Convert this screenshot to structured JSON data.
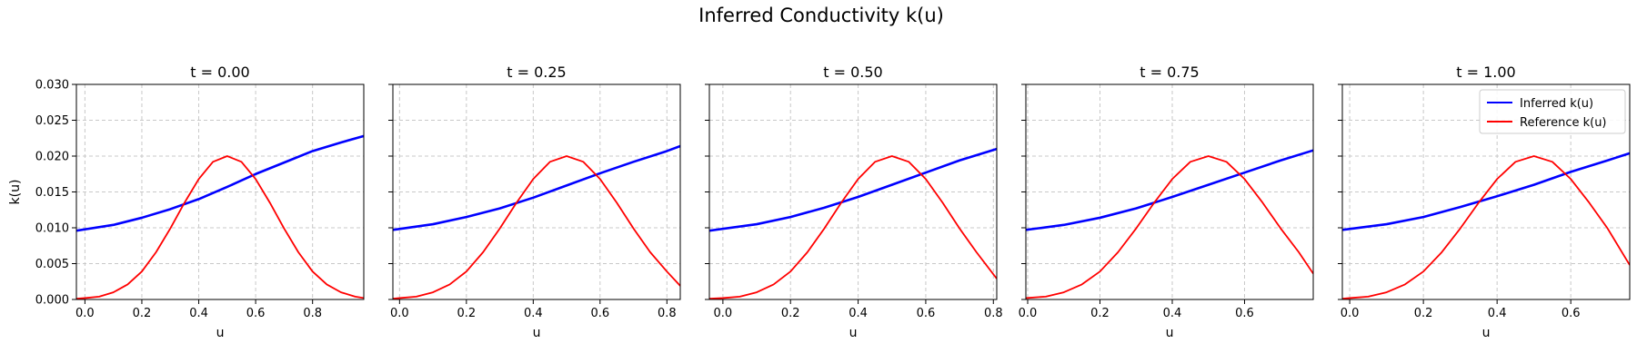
{
  "figure": {
    "title": "Inferred Conductivity k(u)"
  },
  "chart_data": [
    {
      "type": "line",
      "title": "t = 0.00",
      "xlabel": "u",
      "ylabel": "k(u)",
      "xlim": [
        -0.03,
        0.98
      ],
      "ylim": [
        0,
        0.03
      ],
      "xticks": [
        "0.0",
        "0.2",
        "0.4",
        "0.6",
        "0.8"
      ],
      "yticks": [
        "0.000",
        "0.005",
        "0.010",
        "0.015",
        "0.020",
        "0.025",
        "0.030"
      ],
      "grid": true,
      "legend": null,
      "series": [
        {
          "name": "Inferred k(u)",
          "color": "#0000ff",
          "x": [
            -0.03,
            0.1,
            0.2,
            0.3,
            0.4,
            0.5,
            0.6,
            0.7,
            0.8,
            0.9,
            0.98
          ],
          "y": [
            0.0096,
            0.0104,
            0.0114,
            0.0126,
            0.014,
            0.0157,
            0.0175,
            0.0191,
            0.0207,
            0.0219,
            0.0228
          ]
        },
        {
          "name": "Reference k(u)",
          "color": "#ff0000",
          "x": [
            -0.03,
            0.0,
            0.05,
            0.1,
            0.15,
            0.2,
            0.25,
            0.3,
            0.35,
            0.4,
            0.45,
            0.5,
            0.55,
            0.6,
            0.65,
            0.7,
            0.75,
            0.8,
            0.85,
            0.9,
            0.95,
            0.98
          ],
          "y": [
            0.0001,
            0.0002,
            0.0004,
            0.001,
            0.0021,
            0.0039,
            0.0066,
            0.0099,
            0.0135,
            0.0168,
            0.0192,
            0.02,
            0.0192,
            0.0168,
            0.0135,
            0.0099,
            0.0066,
            0.0039,
            0.0021,
            0.001,
            0.0004,
            0.0002
          ]
        }
      ]
    },
    {
      "type": "line",
      "title": "t = 0.25",
      "xlabel": "u",
      "ylabel": "",
      "xlim": [
        -0.02,
        0.84
      ],
      "ylim": [
        0,
        0.03
      ],
      "xticks": [
        "0.0",
        "0.2",
        "0.4",
        "0.6",
        "0.8"
      ],
      "yticks": [],
      "grid": true,
      "legend": null,
      "series": [
        {
          "name": "Inferred k(u)",
          "color": "#0000ff",
          "x": [
            -0.02,
            0.1,
            0.2,
            0.3,
            0.4,
            0.5,
            0.6,
            0.7,
            0.8,
            0.84
          ],
          "y": [
            0.0097,
            0.0105,
            0.0115,
            0.0127,
            0.0142,
            0.0159,
            0.0176,
            0.0192,
            0.0207,
            0.0214
          ]
        },
        {
          "name": "Reference k(u)",
          "color": "#ff0000",
          "x": [
            -0.02,
            0.0,
            0.05,
            0.1,
            0.15,
            0.2,
            0.25,
            0.3,
            0.35,
            0.4,
            0.45,
            0.5,
            0.55,
            0.6,
            0.65,
            0.7,
            0.75,
            0.8,
            0.84
          ],
          "y": [
            0.0001,
            0.0002,
            0.0004,
            0.001,
            0.0021,
            0.0039,
            0.0066,
            0.0099,
            0.0135,
            0.0168,
            0.0192,
            0.02,
            0.0192,
            0.0168,
            0.0135,
            0.0099,
            0.0066,
            0.0039,
            0.0019
          ]
        }
      ]
    },
    {
      "type": "line",
      "title": "t = 0.50",
      "xlabel": "u",
      "ylabel": "",
      "xlim": [
        -0.04,
        0.81
      ],
      "ylim": [
        0,
        0.03
      ],
      "xticks": [
        "0.0",
        "0.2",
        "0.4",
        "0.6",
        "0.8"
      ],
      "yticks": [],
      "grid": true,
      "legend": null,
      "series": [
        {
          "name": "Inferred k(u)",
          "color": "#0000ff",
          "x": [
            -0.04,
            0.1,
            0.2,
            0.3,
            0.4,
            0.5,
            0.6,
            0.7,
            0.81
          ],
          "y": [
            0.0096,
            0.0105,
            0.0115,
            0.0128,
            0.0143,
            0.016,
            0.0177,
            0.0194,
            0.021
          ]
        },
        {
          "name": "Reference k(u)",
          "color": "#ff0000",
          "x": [
            -0.04,
            0.0,
            0.05,
            0.1,
            0.15,
            0.2,
            0.25,
            0.3,
            0.35,
            0.4,
            0.45,
            0.5,
            0.55,
            0.6,
            0.65,
            0.7,
            0.75,
            0.81
          ],
          "y": [
            0.0001,
            0.0002,
            0.0004,
            0.001,
            0.0021,
            0.0039,
            0.0066,
            0.0099,
            0.0135,
            0.0168,
            0.0192,
            0.02,
            0.0192,
            0.0168,
            0.0135,
            0.0099,
            0.0066,
            0.0029
          ]
        }
      ]
    },
    {
      "type": "line",
      "title": "t = 0.75",
      "xlabel": "u",
      "ylabel": "",
      "xlim": [
        -0.005,
        0.79
      ],
      "ylim": [
        0,
        0.03
      ],
      "xticks": [
        "0.0",
        "0.2",
        "0.4",
        "0.6"
      ],
      "yticks": [],
      "grid": true,
      "legend": null,
      "series": [
        {
          "name": "Inferred k(u)",
          "color": "#0000ff",
          "x": [
            -0.005,
            0.1,
            0.2,
            0.3,
            0.4,
            0.5,
            0.6,
            0.7,
            0.79
          ],
          "y": [
            0.0097,
            0.0104,
            0.0114,
            0.0127,
            0.0143,
            0.016,
            0.0177,
            0.0194,
            0.0208
          ]
        },
        {
          "name": "Reference k(u)",
          "color": "#ff0000",
          "x": [
            -0.005,
            0.05,
            0.1,
            0.15,
            0.2,
            0.25,
            0.3,
            0.35,
            0.4,
            0.45,
            0.5,
            0.55,
            0.6,
            0.65,
            0.7,
            0.75,
            0.79
          ],
          "y": [
            0.0002,
            0.0004,
            0.001,
            0.0021,
            0.0039,
            0.0066,
            0.0099,
            0.0135,
            0.0168,
            0.0192,
            0.02,
            0.0192,
            0.0168,
            0.0135,
            0.0099,
            0.0066,
            0.0036
          ]
        }
      ]
    },
    {
      "type": "line",
      "title": "t = 1.00",
      "xlabel": "u",
      "ylabel": "",
      "xlim": [
        -0.02,
        0.76
      ],
      "ylim": [
        0,
        0.03
      ],
      "xticks": [
        "0.0",
        "0.2",
        "0.4",
        "0.6"
      ],
      "yticks": [],
      "grid": true,
      "legend": "upper right",
      "series": [
        {
          "name": "Inferred k(u)",
          "color": "#0000ff",
          "x": [
            -0.02,
            0.1,
            0.2,
            0.3,
            0.4,
            0.5,
            0.6,
            0.7,
            0.76
          ],
          "y": [
            0.0097,
            0.0105,
            0.0115,
            0.0129,
            0.0144,
            0.016,
            0.0178,
            0.0194,
            0.0204
          ]
        },
        {
          "name": "Reference k(u)",
          "color": "#ff0000",
          "x": [
            -0.02,
            0.0,
            0.05,
            0.1,
            0.15,
            0.2,
            0.25,
            0.3,
            0.35,
            0.4,
            0.45,
            0.5,
            0.55,
            0.6,
            0.65,
            0.7,
            0.76
          ],
          "y": [
            0.0001,
            0.0002,
            0.0004,
            0.001,
            0.0021,
            0.0039,
            0.0066,
            0.0099,
            0.0135,
            0.0168,
            0.0192,
            0.02,
            0.0192,
            0.0168,
            0.0135,
            0.0099,
            0.0048
          ]
        }
      ]
    }
  ]
}
